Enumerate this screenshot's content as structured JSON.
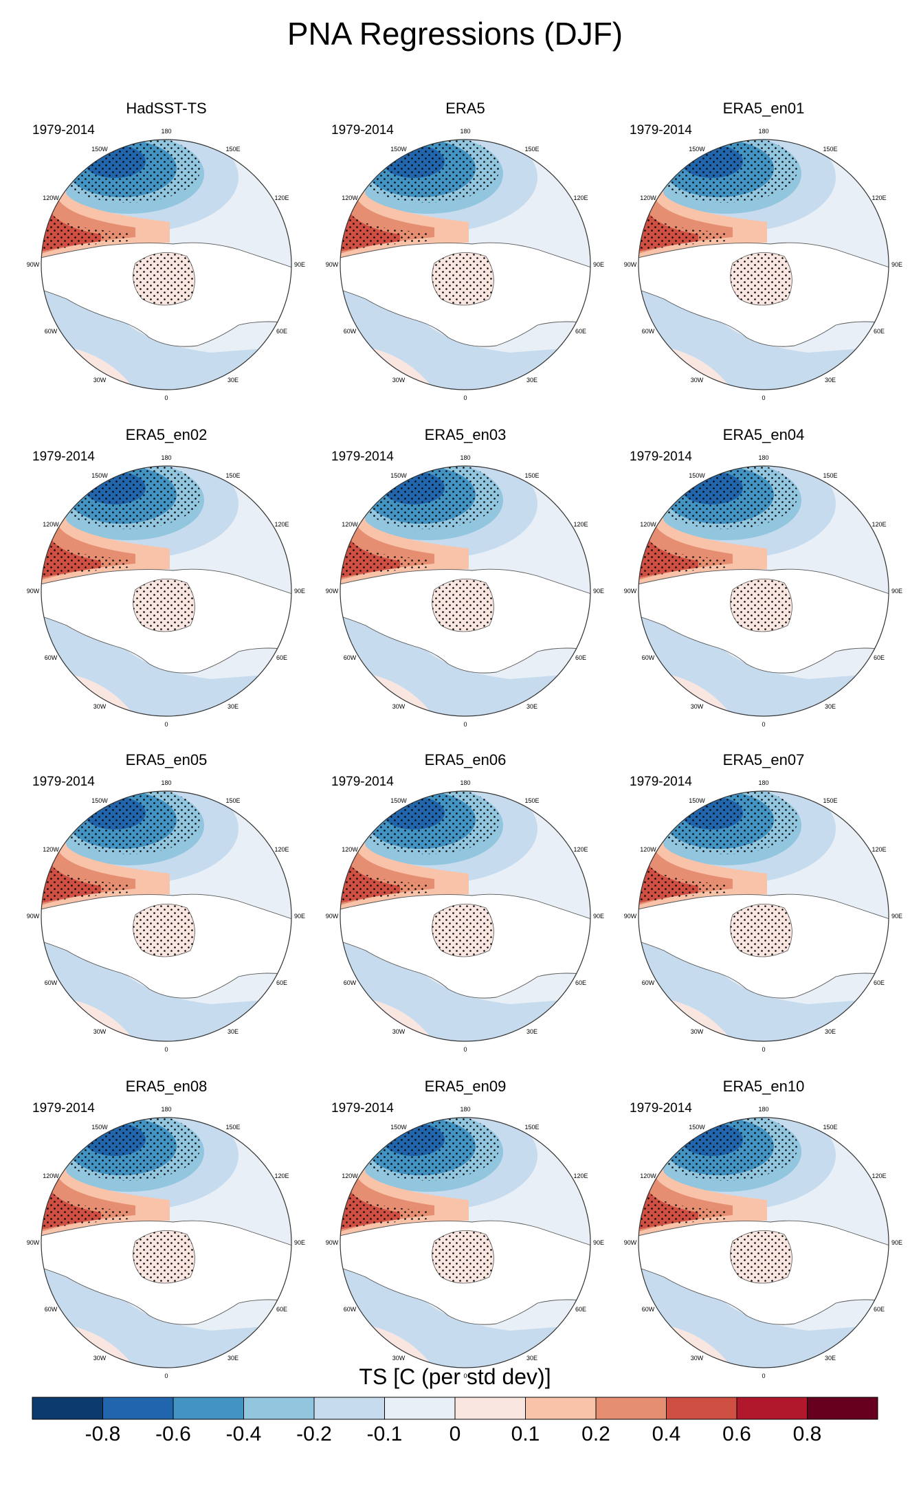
{
  "title": "PNA Regressions (DJF)",
  "chart_data": {
    "type": "heatmap",
    "projection": "north-polar-stereographic",
    "variable": "TS",
    "units": "C (per std dev)",
    "colorbar_title": "TS [C (per std dev)]",
    "colorbar_levels": [
      "-0.8",
      "-0.6",
      "-0.4",
      "-0.2",
      "-0.1",
      "0",
      "0.1",
      "0.2",
      "0.4",
      "0.6",
      "0.8"
    ],
    "colorbar_colors": [
      "#0b3a6e",
      "#2166ac",
      "#4393c3",
      "#92c5de",
      "#c6dcee",
      "#e8eff6",
      "#fae6e0",
      "#f9c3a9",
      "#e58e72",
      "#cf4f43",
      "#b2182b",
      "#67001f"
    ],
    "stippling": "statistically significant regions",
    "longitude_labels": [
      "180",
      "150E",
      "120E",
      "90E",
      "60E",
      "30E",
      "0",
      "30W",
      "60W",
      "90W",
      "120W",
      "150W"
    ],
    "panels": [
      {
        "title": "HadSST-TS",
        "period": "1979-2014"
      },
      {
        "title": "ERA5",
        "period": "1979-2014"
      },
      {
        "title": "ERA5_en01",
        "period": "1979-2014"
      },
      {
        "title": "ERA5_en02",
        "period": "1979-2014"
      },
      {
        "title": "ERA5_en03",
        "period": "1979-2014"
      },
      {
        "title": "ERA5_en04",
        "period": "1979-2014"
      },
      {
        "title": "ERA5_en05",
        "period": "1979-2014"
      },
      {
        "title": "ERA5_en06",
        "period": "1979-2014"
      },
      {
        "title": "ERA5_en07",
        "period": "1979-2014"
      },
      {
        "title": "ERA5_en08",
        "period": "1979-2014"
      },
      {
        "title": "ERA5_en09",
        "period": "1979-2014"
      },
      {
        "title": "ERA5_en10",
        "period": "1979-2014"
      }
    ]
  }
}
